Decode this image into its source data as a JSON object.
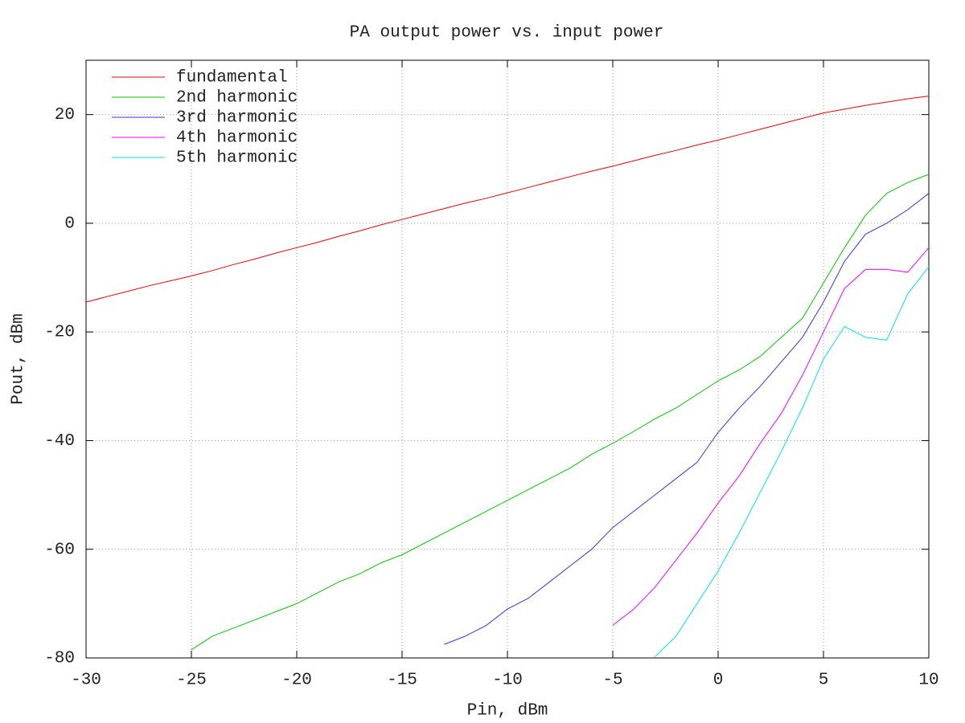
{
  "chart_data": {
    "type": "line",
    "title": "PA output power vs. input power",
    "xlabel": "Pin, dBm",
    "ylabel": "Pout, dBm",
    "xlim": [
      -30,
      10
    ],
    "ylim": [
      -80,
      30
    ],
    "xticks": [
      -30,
      -25,
      -20,
      -15,
      -10,
      -5,
      0,
      5,
      10
    ],
    "yticks": [
      -80,
      -60,
      -40,
      -20,
      0,
      20
    ],
    "grid": true,
    "legend": "top-left",
    "x": [
      -30,
      -29,
      -28,
      -27,
      -26,
      -25,
      -24,
      -23,
      -22,
      -21,
      -20,
      -19,
      -18,
      -17,
      -16,
      -15,
      -14,
      -13,
      -12,
      -11,
      -10,
      -9,
      -8,
      -7,
      -6,
      -5,
      -4,
      -3,
      -2,
      -1,
      0,
      1,
      2,
      3,
      4,
      5,
      6,
      7,
      8,
      9,
      10
    ],
    "series": [
      {
        "name": "fundamental",
        "color": "#ff0000",
        "values": [
          -14.5,
          -13.5,
          -12.5,
          -11.5,
          -10.6,
          -9.7,
          -8.7,
          -7.6,
          -6.6,
          -5.5,
          -4.5,
          -3.5,
          -2.4,
          -1.4,
          -0.3,
          0.7,
          1.7,
          2.7,
          3.7,
          4.6,
          5.6,
          6.6,
          7.6,
          8.6,
          9.6,
          10.5,
          11.5,
          12.5,
          13.4,
          14.4,
          15.3,
          16.3,
          17.3,
          18.3,
          19.3,
          20.3,
          21.0,
          21.7,
          22.3,
          22.9,
          23.4
        ]
      },
      {
        "name": "2nd harmonic",
        "color": "#00cc00",
        "values": [
          null,
          null,
          null,
          null,
          null,
          -78.5,
          -76,
          -74.5,
          -73,
          -71.5,
          -70,
          -68,
          -66,
          -64.5,
          -62.5,
          -61,
          -59,
          -57,
          -55,
          -53,
          -51,
          -49,
          -47,
          -45,
          -42.5,
          -40.5,
          -38.3,
          -36,
          -34,
          -31.5,
          -29,
          -27,
          -24.5,
          -21,
          -17.5,
          -11,
          -4.5,
          1.5,
          5.5,
          7.5,
          9
        ]
      },
      {
        "name": "3rd harmonic",
        "color": "#3333ff",
        "values": [
          null,
          null,
          null,
          null,
          null,
          null,
          null,
          null,
          null,
          null,
          null,
          null,
          null,
          null,
          null,
          null,
          null,
          -77.5,
          -76,
          -74,
          -71,
          -69,
          -66,
          -63,
          -60,
          -56,
          -53,
          -50,
          -47,
          -44,
          -38.5,
          -34,
          -30,
          -25.5,
          -21,
          -14.5,
          -7,
          -2,
          0,
          2.5,
          5.5
        ]
      },
      {
        "name": "4th harmonic",
        "color": "#ff00ff",
        "values": [
          null,
          null,
          null,
          null,
          null,
          null,
          null,
          null,
          null,
          null,
          null,
          null,
          null,
          null,
          null,
          null,
          null,
          null,
          null,
          null,
          null,
          null,
          null,
          null,
          null,
          -74,
          -71,
          -67,
          -62,
          -57,
          -51.5,
          -46.5,
          -40.5,
          -35,
          -28,
          -20,
          -12,
          -8.5,
          -8.5,
          -9,
          -4.5
        ]
      },
      {
        "name": "5th harmonic",
        "color": "#00e5e5",
        "values": [
          null,
          null,
          null,
          null,
          null,
          null,
          null,
          null,
          null,
          null,
          null,
          null,
          null,
          null,
          null,
          null,
          null,
          null,
          null,
          null,
          null,
          null,
          null,
          null,
          null,
          null,
          null,
          -79.8,
          -76,
          -70,
          -64,
          -57,
          -49.5,
          -42,
          -34,
          -25,
          -19,
          -21,
          -21.5,
          -13,
          -8
        ]
      }
    ]
  }
}
